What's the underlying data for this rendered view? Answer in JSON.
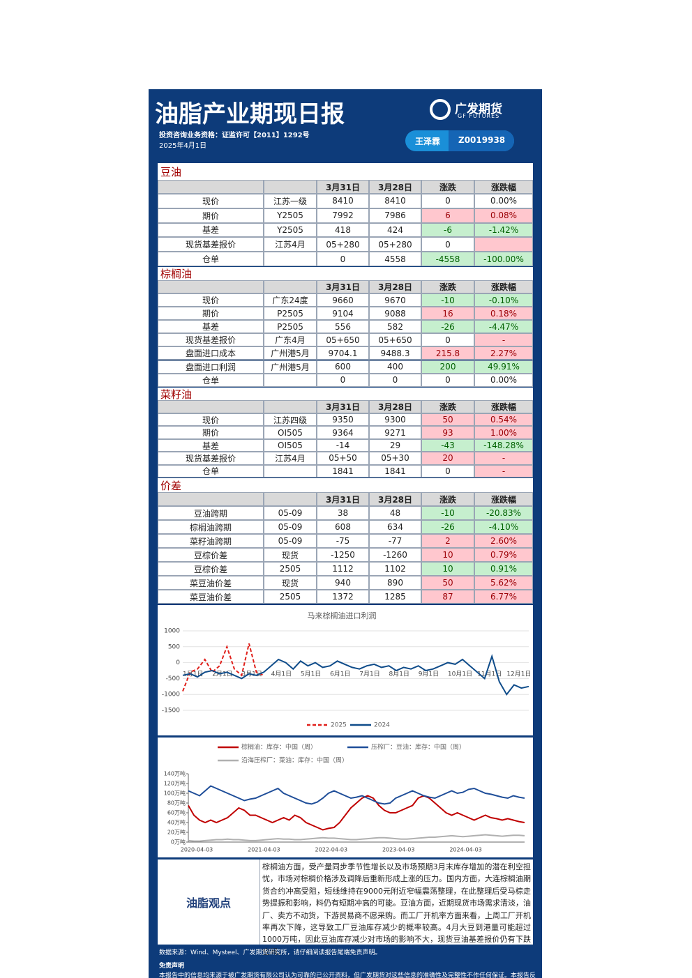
{
  "header": {
    "title": "油脂产业期现日报",
    "qualification": "投资咨询业务资格：证监许可【2011】1292号",
    "date": "2025年4月1日",
    "logo_cn": "广发期货",
    "logo_en": "GF FUTURES",
    "analyst": "王泽霖",
    "license": "Z0019938"
  },
  "tables": [
    {
      "title": "豆油",
      "columns": [
        "3月31日",
        "3月28日",
        "涨跌",
        "涨跌幅"
      ],
      "rows": [
        {
          "cells": [
            "现价",
            "江苏一级",
            "8410",
            "8410",
            "0",
            "0.00%"
          ],
          "colors": [
            "#ffffff",
            "#ffffff"
          ]
        },
        {
          "cells": [
            "期价",
            "Y2505",
            "7992",
            "7986",
            "6",
            "0.08%"
          ],
          "colors": [
            "#ffc7ce",
            "#ffc7ce"
          ]
        },
        {
          "cells": [
            "基差",
            "Y2505",
            "418",
            "424",
            "-6",
            "-1.42%"
          ],
          "colors": [
            "#c6efce",
            "#c6efce"
          ]
        },
        {
          "cells": [
            "现货基差报价",
            "江苏4月",
            "05+280",
            "05+280",
            "0",
            null
          ],
          "colors": [
            "#ffffff",
            "#ffc7ce"
          ]
        },
        {
          "cells": [
            "仓单",
            null,
            "0",
            "4558",
            "-4558",
            "-100.00%"
          ],
          "colors": [
            "#c6efce",
            "#c6efce"
          ]
        }
      ]
    },
    {
      "title": "棕榈油",
      "columns": [
        "3月31日",
        "3月28日",
        "涨跌",
        "涨跌幅"
      ],
      "rows": [
        {
          "cells": [
            "现价",
            "广东24度",
            "9660",
            "9670",
            "-10",
            "-0.10%"
          ],
          "colors": [
            "#c6efce",
            "#c6efce"
          ]
        },
        {
          "cells": [
            "期价",
            "P2505",
            "9104",
            "9088",
            "16",
            "0.18%"
          ],
          "colors": [
            "#ffc7ce",
            "#ffc7ce"
          ]
        },
        {
          "cells": [
            "基差",
            "P2505",
            "556",
            "582",
            "-26",
            "-4.47%"
          ],
          "colors": [
            "#c6efce",
            "#c6efce"
          ]
        },
        {
          "cells": [
            "现货基差报价",
            "广东4月",
            "05+650",
            "05+650",
            "0",
            "-"
          ],
          "colors": [
            "#ffffff",
            "#ffc7ce"
          ]
        },
        {
          "cells": [
            "盘面进口成本",
            "广州港5月",
            "9704.1",
            "9488.3",
            "215.8",
            "2.27%"
          ],
          "colors": [
            "#ffc7ce",
            "#ffc7ce"
          ]
        },
        {
          "cells": [
            "盘面进口利润",
            "广州港5月",
            "600",
            "400",
            "200",
            "49.91%"
          ],
          "colors": [
            "#c6efce",
            "#c6efce"
          ]
        },
        {
          "cells": [
            "仓单",
            null,
            "0",
            "0",
            "0",
            "0.00%"
          ],
          "colors": [
            "#ffffff",
            "#ffffff"
          ]
        }
      ]
    },
    {
      "title": "菜籽油",
      "columns": [
        "3月31日",
        "3月28日",
        "涨跌",
        "涨跌幅"
      ],
      "rows": [
        {
          "cells": [
            "现价",
            "江苏四级",
            "9350",
            "9300",
            "50",
            "0.54%"
          ],
          "colors": [
            "#ffc7ce",
            "#ffc7ce"
          ]
        },
        {
          "cells": [
            "期价",
            "OI505",
            "9364",
            "9271",
            "93",
            "1.00%"
          ],
          "colors": [
            "#ffc7ce",
            "#ffc7ce"
          ]
        },
        {
          "cells": [
            "基差",
            "OI505",
            "-14",
            "29",
            "-43",
            "-148.28%"
          ],
          "colors": [
            "#c6efce",
            "#c6efce"
          ]
        },
        {
          "cells": [
            "现货基差报价",
            "江苏4月",
            "05+50",
            "05+30",
            "20",
            "-"
          ],
          "colors": [
            "#ffc7ce",
            "#ffc7ce"
          ]
        },
        {
          "cells": [
            "仓单",
            null,
            "1841",
            "1841",
            "0",
            "-"
          ],
          "colors": [
            "#ffffff",
            "#ffc7ce"
          ]
        }
      ]
    },
    {
      "title": "价差",
      "columns": [
        "3月31日",
        "3月28日",
        "涨跌",
        "涨跌幅"
      ],
      "rows": [
        {
          "cells": [
            "豆油跨期",
            "05-09",
            "38",
            "48",
            "-10",
            "-20.83%"
          ],
          "colors": [
            "#c6efce",
            "#c6efce"
          ]
        },
        {
          "cells": [
            "棕榈油跨期",
            "05-09",
            "608",
            "634",
            "-26",
            "-4.10%"
          ],
          "colors": [
            "#c6efce",
            "#c6efce"
          ]
        },
        {
          "cells": [
            "菜籽油跨期",
            "05-09",
            "-75",
            "-77",
            "2",
            "2.60%"
          ],
          "colors": [
            "#ffc7ce",
            "#ffc7ce"
          ]
        },
        {
          "cells": [
            "豆棕价差",
            "现货",
            "-1250",
            "-1260",
            "10",
            "0.79%"
          ],
          "colors": [
            "#ffc7ce",
            "#ffc7ce"
          ]
        },
        {
          "cells": [
            "豆棕价差",
            "2505",
            "1112",
            "1102",
            "10",
            "0.91%"
          ],
          "colors": [
            "#c6efce",
            "#c6efce"
          ]
        },
        {
          "cells": [
            "菜豆油价差",
            "现货",
            "940",
            "890",
            "50",
            "5.62%"
          ],
          "colors": [
            "#ffc7ce",
            "#ffc7ce"
          ]
        },
        {
          "cells": [
            "菜豆油价差",
            "2505",
            "1372",
            "1285",
            "87",
            "6.77%"
          ],
          "colors": [
            "#ffc7ce",
            "#ffc7ce"
          ]
        }
      ]
    }
  ],
  "chart_data": [
    {
      "type": "line",
      "title": "马来棕榈油进口利润",
      "categories": [
        "1月1日",
        null,
        null,
        null,
        "2月1日",
        null,
        null,
        null,
        "3月1日",
        null,
        null,
        null,
        "4月1日",
        null,
        null,
        null,
        "5月1日",
        null,
        null,
        null,
        "6月1日",
        null,
        null,
        null,
        "7月1日",
        null,
        null,
        null,
        "8月1日",
        null,
        null,
        null,
        "9月1日",
        null,
        null,
        null,
        "10月1日",
        null,
        null,
        null,
        "11月1日",
        null,
        null,
        null,
        "12月1日",
        null,
        null,
        null
      ],
      "series": [
        {
          "name": "2025",
          "color": "#e0201b",
          "dashed": true,
          "values": [
            -900,
            -300,
            -200,
            100,
            -300,
            -100,
            500,
            -200,
            -400,
            600,
            -300,
            -400,
            null,
            null,
            null,
            null,
            null,
            null,
            null,
            null,
            null,
            null,
            null,
            null,
            null,
            null,
            null,
            null,
            null,
            null,
            null,
            null,
            null,
            null,
            null,
            null,
            null,
            null,
            null,
            null,
            null,
            null,
            null,
            null,
            null,
            null,
            null,
            null
          ]
        },
        {
          "name": "2024",
          "color": "#0f4c8a",
          "dashed": false,
          "values": [
            -400,
            -350,
            -450,
            -300,
            -250,
            -350,
            -300,
            -400,
            -500,
            -350,
            -400,
            -300,
            -100,
            100,
            0,
            -200,
            50,
            -100,
            0,
            -150,
            -100,
            50,
            -50,
            -150,
            -200,
            -100,
            -50,
            -150,
            -100,
            -250,
            -150,
            -200,
            -100,
            -250,
            -200,
            -100,
            0,
            -50,
            100,
            -100,
            -300,
            -500,
            200,
            -600,
            -1000,
            -700,
            -800,
            -750
          ]
        }
      ],
      "ylim": [
        -1500,
        1000
      ],
      "yticks": [
        -1500,
        -1000,
        -500,
        0,
        500,
        1000
      ],
      "grid": true,
      "legend": "bottom"
    },
    {
      "type": "line",
      "categories": [
        "2020-04-03",
        null,
        null,
        null,
        null,
        null,
        null,
        null,
        null,
        null,
        null,
        null,
        "2021-04-03",
        null,
        null,
        null,
        null,
        null,
        null,
        null,
        null,
        null,
        null,
        null,
        "2022-04-03",
        null,
        null,
        null,
        null,
        null,
        null,
        null,
        null,
        null,
        null,
        null,
        "2023-04-03",
        null,
        null,
        null,
        null,
        null,
        null,
        null,
        null,
        null,
        null,
        null,
        "2024-04-03",
        null,
        null,
        null,
        null,
        null,
        null,
        null,
        null,
        null,
        null,
        null,
        null
      ],
      "series": [
        {
          "name": "棕榈油：库存：中国（周）",
          "color": "#c00000",
          "dashed": false,
          "values": [
            75,
            55,
            45,
            40,
            45,
            40,
            45,
            50,
            60,
            70,
            65,
            55,
            55,
            50,
            45,
            40,
            45,
            50,
            45,
            55,
            50,
            40,
            35,
            30,
            25,
            28,
            30,
            40,
            55,
            70,
            80,
            90,
            95,
            90,
            75,
            65,
            60,
            60,
            65,
            70,
            75,
            90,
            95,
            90,
            80,
            70,
            60,
            55,
            60,
            55,
            50,
            45,
            50,
            55,
            50,
            48,
            45,
            48,
            45,
            42,
            40
          ]
        },
        {
          "name": "压榨厂：豆油：库存：中国（周）",
          "color": "#1f4e99",
          "dashed": false,
          "values": [
            105,
            100,
            95,
            105,
            115,
            110,
            105,
            100,
            95,
            90,
            85,
            88,
            90,
            95,
            100,
            105,
            110,
            100,
            95,
            90,
            85,
            80,
            78,
            82,
            90,
            100,
            105,
            100,
            95,
            90,
            92,
            95,
            90,
            85,
            80,
            78,
            80,
            90,
            95,
            100,
            105,
            100,
            95,
            92,
            90,
            95,
            100,
            105,
            100,
            102,
            108,
            110,
            105,
            100,
            98,
            95,
            92,
            90,
            95,
            92,
            90
          ]
        },
        {
          "name": "沿海压榨厂：菜油：库存：中国（周）",
          "color": "#b0b0b0",
          "dashed": false,
          "values": [
            3,
            2,
            2,
            3,
            4,
            5,
            5,
            6,
            5,
            5,
            4,
            3,
            3,
            4,
            5,
            6,
            7,
            6,
            6,
            5,
            5,
            6,
            7,
            8,
            9,
            8,
            8,
            7,
            6,
            5,
            5,
            6,
            7,
            8,
            9,
            9,
            8,
            7,
            6,
            6,
            7,
            8,
            9,
            10,
            10,
            11,
            12,
            13,
            12,
            11,
            12,
            13,
            14,
            15,
            14,
            13,
            12,
            13,
            14,
            14,
            13
          ]
        }
      ],
      "ylim": [
        0,
        140
      ],
      "yticks": [
        {
          "value": 0,
          "label": "0万吨"
        },
        {
          "value": 20,
          "label": "20万吨"
        },
        {
          "value": 40,
          "label": "40万吨"
        },
        {
          "value": 60,
          "label": "60万吨"
        },
        {
          "value": 80,
          "label": "80万吨"
        },
        {
          "value": 100,
          "label": "100万吨"
        },
        {
          "value": 120,
          "label": "120万吨"
        },
        {
          "value": 140,
          "label": "140万吨"
        }
      ],
      "grid": false,
      "legend": "top"
    }
  ],
  "opinion": {
    "title": "油脂观点",
    "text": "棕榈油方面，受产量同步季节性增长以及市场预期3月末库存增加的潜在利空担忧，市场对棕榈价格涉及调降后重新形成上涨的压力。国内方面，大连棕榈油期货合约冲高受阻，短线维持在9000元附近窄幅震荡整理，在此整理后受马棕走势提振和影响，料仍有短期冲高的可能。豆油方面，近期现货市场需求清淡，油厂、卖方不动货，下游贸易商不愿采购。而工厂开机率方面来看，上周工厂开机率再次下降，这导致工厂豆油库存减少的概率较高。4月大豆到港量可能超过1000万吨，因此豆油库存减少对市场的影响不大，现货豆油基差报价仍有下跌空间。"
  },
  "footer": {
    "source": "数据来源：Wind、Mysteel、广发期货研究所，请仔细阅读报告尾端免责声明。",
    "disclaimer_title": "免责声明",
    "disclaimer": "本报告中的信息均来源于被广发期货有限公司认为可靠的已公开资料，但广发期货对这些信息的准确性及完整性不作任何保证。本报告反映研究人员的不同观点、见解及分析方法。"
  }
}
